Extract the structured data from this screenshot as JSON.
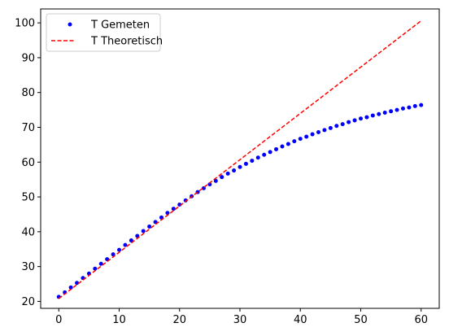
{
  "chart_data": {
    "type": "line",
    "title": "",
    "xlabel": "",
    "ylabel": "",
    "xlim": [
      -3,
      63
    ],
    "ylim": [
      18,
      104
    ],
    "xticks": [
      0,
      10,
      20,
      30,
      40,
      50,
      60
    ],
    "yticks": [
      20,
      30,
      40,
      50,
      60,
      70,
      80,
      90,
      100
    ],
    "grid": false,
    "legend_position": "top-left",
    "series": [
      {
        "name": "T Gemeten",
        "style": "points",
        "color": "#0000ff",
        "x": [
          0,
          1,
          2,
          3,
          4,
          5,
          6,
          7,
          8,
          9,
          10,
          11,
          12,
          13,
          14,
          15,
          16,
          17,
          18,
          19,
          20,
          21,
          22,
          23,
          24,
          25,
          26,
          27,
          28,
          29,
          30,
          31,
          32,
          33,
          34,
          35,
          36,
          37,
          38,
          39,
          40,
          41,
          42,
          43,
          44,
          45,
          46,
          47,
          48,
          49,
          50,
          51,
          52,
          53,
          54,
          55,
          56,
          57,
          58,
          59,
          60
        ],
        "y": [
          21.3,
          22.6,
          24.0,
          25.3,
          26.7,
          28.0,
          29.4,
          30.8,
          32.1,
          33.5,
          34.8,
          36.2,
          37.5,
          38.8,
          40.2,
          41.5,
          42.8,
          44.1,
          45.4,
          46.6,
          47.8,
          49.0,
          50.2,
          51.4,
          52.5,
          53.6,
          54.6,
          55.7,
          56.7,
          57.6,
          58.6,
          59.5,
          60.4,
          61.3,
          62.1,
          62.9,
          63.7,
          64.5,
          65.2,
          66.0,
          66.7,
          67.3,
          68.0,
          68.6,
          69.2,
          69.8,
          70.4,
          70.9,
          71.5,
          72.0,
          72.5,
          72.9,
          73.4,
          73.8,
          74.2,
          74.6,
          75.0,
          75.4,
          75.7,
          76.1,
          76.4
        ]
      },
      {
        "name": "T Theoretisch",
        "style": "dashed",
        "color": "#ff0000",
        "x": [
          0,
          60
        ],
        "y": [
          20.8,
          100.6
        ]
      }
    ]
  }
}
